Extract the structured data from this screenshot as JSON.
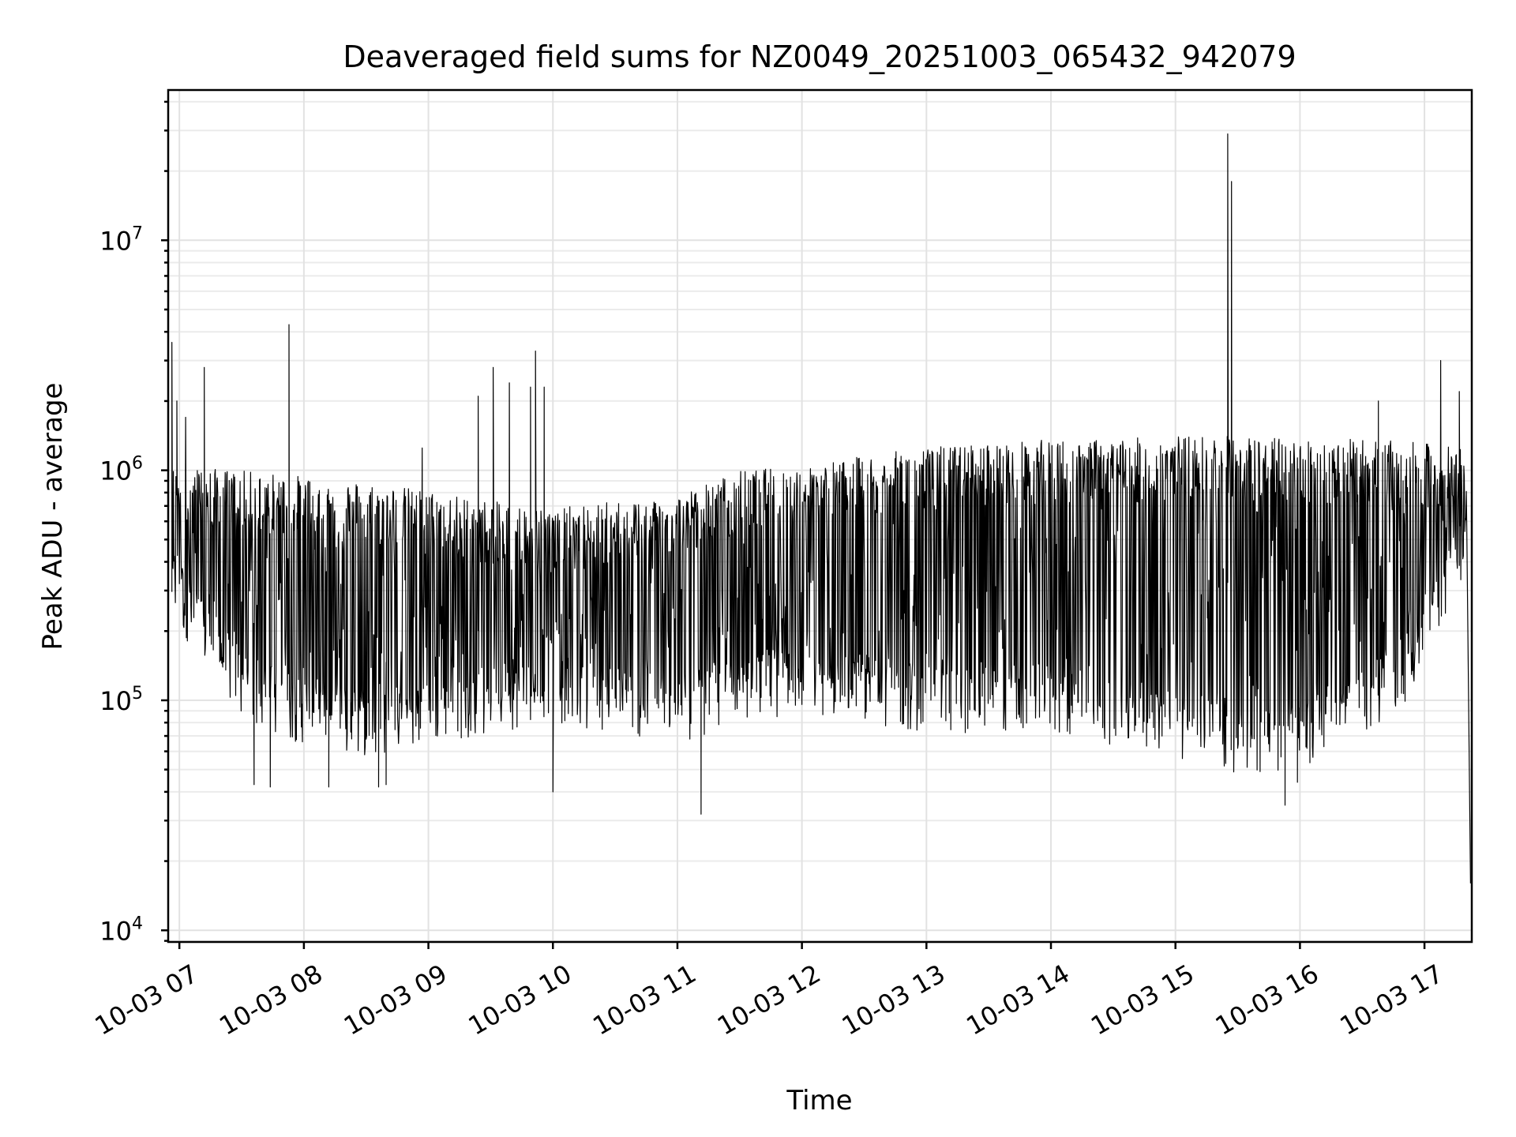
{
  "chart_data": {
    "type": "line",
    "title": "Deaveraged field sums for NZ0049_20251003_065432_942079",
    "xlabel": "Time",
    "ylabel": "Peak ADU - average",
    "yscale": "log",
    "ylim": [
      8900,
      45000000
    ],
    "y_ticks": [
      {
        "value": 10000,
        "base": "10",
        "exp": "4"
      },
      {
        "value": 100000,
        "base": "10",
        "exp": "5"
      },
      {
        "value": 1000000,
        "base": "10",
        "exp": "6"
      },
      {
        "value": 10000000,
        "base": "10",
        "exp": "7"
      }
    ],
    "x_range_hours": [
      6.91,
      17.38
    ],
    "x_ticks": [
      {
        "hour": 7,
        "label": "10-03 07"
      },
      {
        "hour": 8,
        "label": "10-03 08"
      },
      {
        "hour": 9,
        "label": "10-03 09"
      },
      {
        "hour": 10,
        "label": "10-03 10"
      },
      {
        "hour": 11,
        "label": "10-03 11"
      },
      {
        "hour": 12,
        "label": "10-03 12"
      },
      {
        "hour": 13,
        "label": "10-03 13"
      },
      {
        "hour": 14,
        "label": "10-03 14"
      },
      {
        "hour": 15,
        "label": "10-03 15"
      },
      {
        "hour": 16,
        "label": "10-03 16"
      },
      {
        "hour": 17,
        "label": "10-03 17"
      }
    ],
    "grid": true,
    "series": [
      {
        "name": "deaveraged field sum",
        "color": "#000000",
        "envelope": {
          "hours": [
            6.91,
            7.5,
            8.0,
            8.5,
            9.0,
            9.5,
            10.0,
            10.5,
            11.0,
            11.5,
            12.0,
            12.5,
            13.0,
            13.5,
            14.0,
            14.5,
            15.0,
            15.5,
            16.0,
            16.5,
            17.0,
            17.3
          ],
          "upper": [
            1000000,
            950000,
            900000,
            850000,
            780000,
            700000,
            650000,
            700000,
            750000,
            950000,
            1000000,
            1100000,
            1200000,
            1250000,
            1300000,
            1300000,
            1350000,
            1350000,
            1300000,
            1300000,
            1250000,
            1200000
          ],
          "lower": [
            300000,
            100000,
            80000,
            70000,
            80000,
            90000,
            100000,
            90000,
            80000,
            100000,
            110000,
            100000,
            90000,
            90000,
            90000,
            80000,
            70000,
            60000,
            60000,
            80000,
            150000,
            400000
          ]
        },
        "spikes": [
          {
            "hour": 6.94,
            "value": 3600000
          },
          {
            "hour": 6.98,
            "value": 2000000
          },
          {
            "hour": 7.05,
            "value": 1700000
          },
          {
            "hour": 7.2,
            "value": 2800000
          },
          {
            "hour": 7.88,
            "value": 4300000
          },
          {
            "hour": 8.95,
            "value": 1250000
          },
          {
            "hour": 9.4,
            "value": 2100000
          },
          {
            "hour": 9.52,
            "value": 2800000
          },
          {
            "hour": 9.65,
            "value": 2400000
          },
          {
            "hour": 9.82,
            "value": 2300000
          },
          {
            "hour": 9.86,
            "value": 3300000
          },
          {
            "hour": 9.93,
            "value": 2300000
          },
          {
            "hour": 15.42,
            "value": 29000000
          },
          {
            "hour": 15.45,
            "value": 18000000
          },
          {
            "hour": 16.63,
            "value": 2000000
          },
          {
            "hour": 17.13,
            "value": 3000000
          },
          {
            "hour": 17.28,
            "value": 2200000
          }
        ],
        "dips": [
          {
            "hour": 7.6,
            "value": 43000
          },
          {
            "hour": 7.73,
            "value": 42000
          },
          {
            "hour": 8.2,
            "value": 42000
          },
          {
            "hour": 8.6,
            "value": 42000
          },
          {
            "hour": 8.66,
            "value": 43000
          },
          {
            "hour": 10.0,
            "value": 40000
          },
          {
            "hour": 11.19,
            "value": 32000
          },
          {
            "hour": 15.88,
            "value": 35000
          },
          {
            "hour": 15.98,
            "value": 44000
          },
          {
            "hour": 17.37,
            "value": 16000
          }
        ]
      }
    ]
  }
}
